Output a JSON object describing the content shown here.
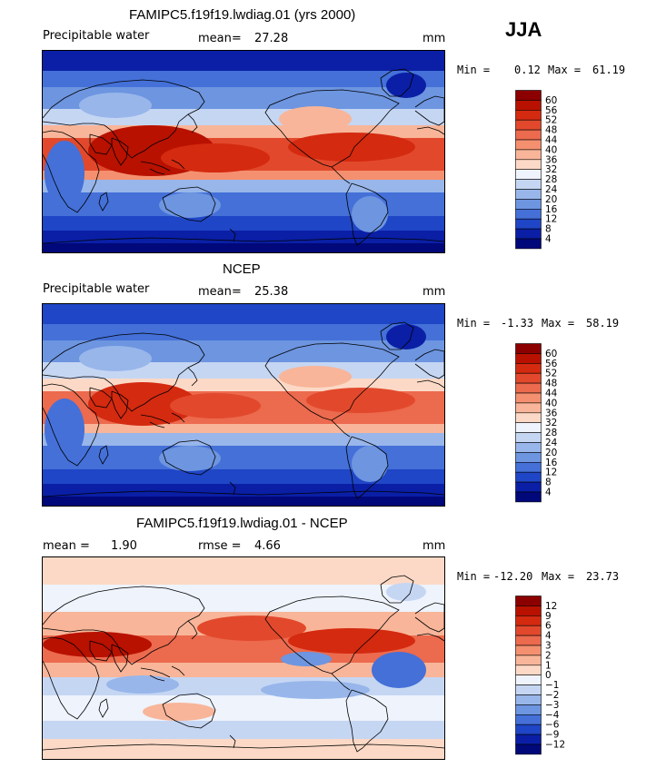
{
  "season": "JJA",
  "panels": [
    {
      "title": "FAMIPC5.f19f19.lwdiag.01 (yrs 2000)",
      "left_label": "Precipitable water",
      "stat_label": "mean=",
      "stat_value": "27.28",
      "units": "mm",
      "min_label": "Min =",
      "min_value": "0.12",
      "max_label": "Max =",
      "max_value": "61.19",
      "levels": [
        "60",
        "56",
        "52",
        "48",
        "44",
        "40",
        "36",
        "32",
        "28",
        "24",
        "20",
        "16",
        "12",
        "8",
        "4"
      ],
      "colors": [
        "#8c0000",
        "#b81100",
        "#d42a10",
        "#e2492c",
        "#ec6a4e",
        "#f4906f",
        "#f8b599",
        "#fcd9c6",
        "#eef3fc",
        "#c5d6f3",
        "#98b6ea",
        "#6d95e0",
        "#4470d8",
        "#1f46c6",
        "#0a1fa6",
        "#00087a"
      ],
      "style": "model"
    },
    {
      "title": "NCEP",
      "left_label": "Precipitable water",
      "stat_label": "mean=",
      "stat_value": "25.38",
      "units": "mm",
      "min_label": "Min =",
      "min_value": "-1.33",
      "max_label": "Max =",
      "max_value": "58.19",
      "levels": [
        "60",
        "56",
        "52",
        "48",
        "44",
        "40",
        "36",
        "32",
        "28",
        "24",
        "20",
        "16",
        "12",
        "8",
        "4"
      ],
      "colors": [
        "#8c0000",
        "#b81100",
        "#d42a10",
        "#e2492c",
        "#ec6a4e",
        "#f4906f",
        "#f8b599",
        "#fcd9c6",
        "#eef3fc",
        "#c5d6f3",
        "#98b6ea",
        "#6d95e0",
        "#4470d8",
        "#1f46c6",
        "#0a1fa6",
        "#00087a"
      ],
      "style": "obs"
    },
    {
      "title": "FAMIPC5.f19f19.lwdiag.01 - NCEP",
      "left_label": "mean =",
      "left_value": "1.90",
      "stat_label": "rmse =",
      "stat_value": "4.66",
      "units": "mm",
      "min_label": "Min =",
      "min_value": "-12.20",
      "max_label": "Max =",
      "max_value": "23.73",
      "levels": [
        "12",
        "9",
        "6",
        "4",
        "3",
        "2",
        "1",
        "0",
        "−1",
        "−2",
        "−3",
        "−4",
        "−6",
        "−9",
        "−12"
      ],
      "colors": [
        "#8c0000",
        "#b81100",
        "#d42a10",
        "#e2492c",
        "#ec6a4e",
        "#f4906f",
        "#f8b599",
        "#fcd9c6",
        "#eef3fc",
        "#c5d6f3",
        "#98b6ea",
        "#6d95e0",
        "#4470d8",
        "#1f46c6",
        "#0a1fa6",
        "#00087a"
      ],
      "style": "diff"
    }
  ]
}
